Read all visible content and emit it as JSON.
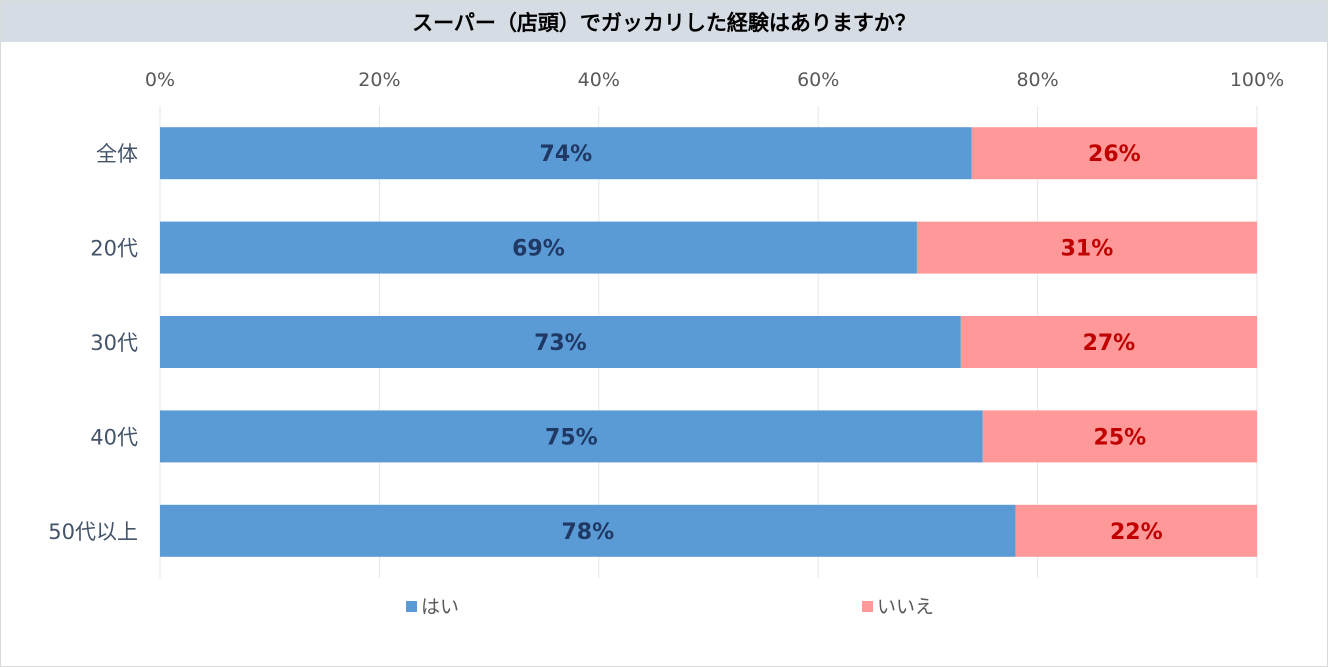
{
  "chart_data": {
    "type": "bar",
    "orientation": "horizontal",
    "stacked": true,
    "title": "スーパー（店頭）でガッカリした経験はありますか？",
    "categories": [
      "全体",
      "20代",
      "30代",
      "40代",
      "50代以上"
    ],
    "series": [
      {
        "name": "はい",
        "values": [
          74,
          69,
          73,
          75,
          78
        ],
        "labels": [
          "74%",
          "69%",
          "73%",
          "75%",
          "78%"
        ],
        "color": "#5b9bd5",
        "label_color": "#1f3864"
      },
      {
        "name": "いいえ",
        "values": [
          26,
          31,
          27,
          25,
          22
        ],
        "labels": [
          "26%",
          "31%",
          "27%",
          "25%",
          "22%"
        ],
        "color": "#ff9999",
        "label_color": "#c00000"
      }
    ],
    "xlim": [
      0,
      100
    ],
    "x_ticks": [
      "0%",
      "20%",
      "40%",
      "60%",
      "80%",
      "100%"
    ],
    "x_tick_values": [
      0,
      20,
      40,
      60,
      80,
      100
    ],
    "axis_position": "top",
    "grid": true,
    "legend_position": "bottom"
  }
}
